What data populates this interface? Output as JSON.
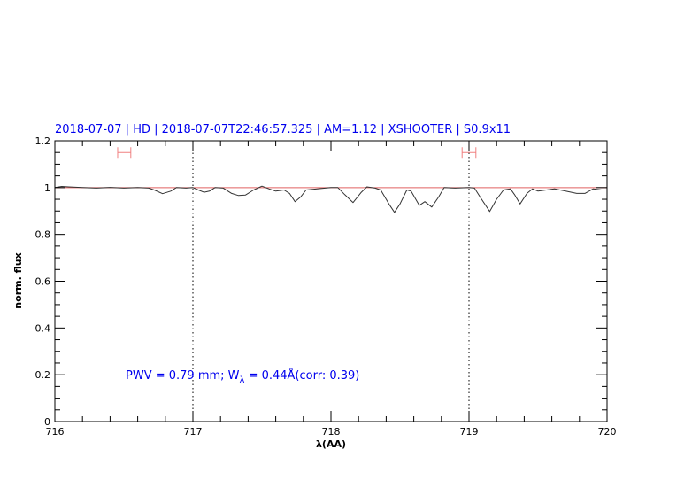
{
  "chart_data": {
    "type": "line",
    "title": "2018-07-07 | HD | 2018-07-07T22:46:57.325 | AM=1.12 | XSHOOTER | S0.9x11",
    "xlabel": "λ(AA)",
    "ylabel": "norm. flux",
    "xlim": [
      716,
      720
    ],
    "ylim": [
      0,
      1.2
    ],
    "xticks": [
      "716",
      "717",
      "718",
      "719",
      "720"
    ],
    "yticks": [
      "0",
      "0.2",
      "0.4",
      "0.6",
      "0.8",
      "1",
      "1.2"
    ],
    "grid": false,
    "annotation": {
      "prefix": "PWV = 0.79 mm; W",
      "sub": "λ",
      "suffix": " = 0.44Å(corr: 0.39)"
    },
    "colors": {
      "spectrum": "#333333",
      "continuum": "#e06060",
      "range_markers": "#f08080",
      "text": "#0000ee"
    },
    "continuum_level": 1.0,
    "vertical_dotted_lines": [
      717,
      719
    ],
    "range_markers": [
      {
        "x": [
          716.455,
          716.55
        ],
        "y": 1.15
      },
      {
        "x": [
          718.95,
          719.05
        ],
        "y": 1.15
      }
    ],
    "series": [
      {
        "x": [
          716.0,
          716.05,
          716.1,
          716.2,
          716.3,
          716.4,
          716.5,
          716.6,
          716.68,
          716.72,
          716.78,
          716.84,
          716.88,
          716.95,
          717.0,
          717.04,
          717.08,
          717.12,
          717.16,
          717.22,
          717.28,
          717.33,
          717.38,
          717.44,
          717.5,
          717.55,
          717.6,
          717.66,
          717.7,
          717.74,
          717.78,
          717.82,
          717.9,
          718.0,
          718.05,
          718.1,
          718.16,
          718.22,
          718.26,
          718.32,
          718.36,
          718.42,
          718.46,
          718.5,
          718.55,
          718.58,
          718.64,
          718.68,
          718.73,
          718.78,
          718.82,
          718.9,
          719.0,
          719.04,
          719.08,
          719.15,
          719.2,
          719.25,
          719.3,
          719.33,
          719.37,
          719.42,
          719.46,
          719.5,
          719.56,
          719.62,
          719.7,
          719.78,
          719.84,
          719.9,
          719.96,
          720.0
        ],
        "y": [
          1.0,
          1.005,
          1.003,
          1.0,
          0.998,
          1.001,
          0.998,
          1.0,
          0.998,
          0.99,
          0.974,
          0.985,
          1.0,
          0.998,
          1.0,
          0.99,
          0.98,
          0.985,
          1.0,
          0.998,
          0.975,
          0.966,
          0.968,
          0.99,
          1.006,
          0.995,
          0.985,
          0.99,
          0.975,
          0.94,
          0.96,
          0.99,
          0.995,
          1.0,
          1.0,
          0.97,
          0.936,
          0.98,
          1.003,
          0.998,
          0.99,
          0.93,
          0.894,
          0.93,
          0.99,
          0.985,
          0.924,
          0.94,
          0.917,
          0.96,
          1.0,
          0.998,
          1.0,
          0.998,
          0.96,
          0.898,
          0.95,
          0.99,
          0.995,
          0.97,
          0.93,
          0.975,
          0.995,
          0.985,
          0.99,
          0.995,
          0.985,
          0.975,
          0.975,
          0.995,
          0.99,
          0.99
        ]
      }
    ]
  }
}
